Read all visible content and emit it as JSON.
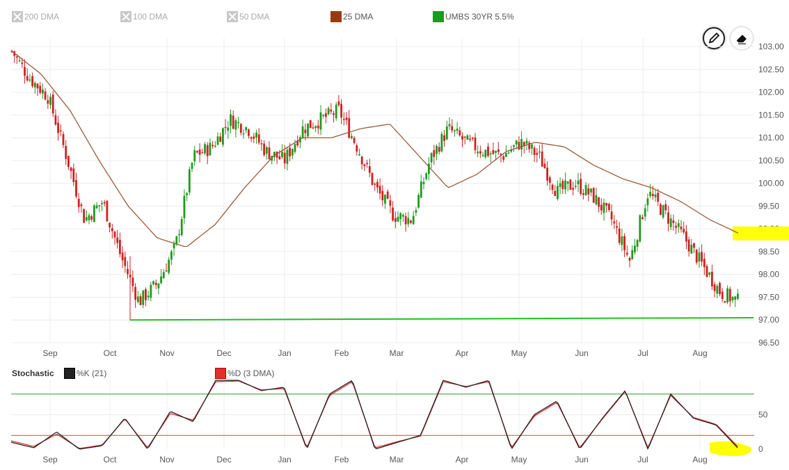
{
  "legend": {
    "items": [
      {
        "label": "200 DMA",
        "enabled": false
      },
      {
        "label": "100 DMA",
        "enabled": false
      },
      {
        "label": "50 DMA",
        "enabled": false
      },
      {
        "label": "25 DMA",
        "enabled": true,
        "color": "#9a3a10"
      },
      {
        "label": "UMBS 30YR 5.5%",
        "enabled": true,
        "color": "#1e9a1e"
      }
    ]
  },
  "tools": {
    "pencil": "pencil-icon",
    "eraser": "eraser-icon"
  },
  "stochastic": {
    "title": "Stochastic",
    "k_label": "%K (21)",
    "d_label": "%D (3 DMA)",
    "k_color": "#222222",
    "d_color": "#e03030"
  },
  "colors": {
    "up": "#1e9a1e",
    "down": "#d02020",
    "dma": "#9a5a3a",
    "support": "#22c022",
    "highlight": "#ffff00",
    "overbought": "#2e9a2e",
    "oversold": "#e04040"
  },
  "chart_data": [
    {
      "type": "candlestick",
      "title": "UMBS 30YR 5.5%",
      "x_tick_labels": [
        "Sep",
        "Oct",
        "Nov",
        "Dec",
        "Jan",
        "Feb",
        "Mar",
        "Apr",
        "May",
        "Jun",
        "Jul",
        "Aug"
      ],
      "y_tick_labels": [
        "103.00",
        "102.50",
        "102.00",
        "101.50",
        "101.00",
        "100.50",
        "100.00",
        "99.50",
        "99.00",
        "98.50",
        "98.00",
        "97.50",
        "97.00",
        "96.50"
      ],
      "ylim": [
        96.5,
        103.0
      ],
      "close_anchors": [
        {
          "x": "Aug",
          "y": 102.9
        },
        {
          "x": "Aug",
          "y": 102.3
        },
        {
          "x": "Sep",
          "y": 101.9
        },
        {
          "x": "Sep",
          "y": 100.6
        },
        {
          "x": "Sep",
          "y": 99.2
        },
        {
          "x": "Oct",
          "y": 99.6
        },
        {
          "x": "Oct",
          "y": 98.4
        },
        {
          "x": "Oct",
          "y": 97.4
        },
        {
          "x": "Oct",
          "y": 97.8
        },
        {
          "x": "Nov",
          "y": 98.6
        },
        {
          "x": "Nov",
          "y": 100.6
        },
        {
          "x": "Nov",
          "y": 100.8
        },
        {
          "x": "Dec",
          "y": 101.4
        },
        {
          "x": "Dec",
          "y": 101.2
        },
        {
          "x": "Dec",
          "y": 100.7
        },
        {
          "x": "Jan",
          "y": 100.5
        },
        {
          "x": "Jan",
          "y": 101.2
        },
        {
          "x": "Jan",
          "y": 101.4
        },
        {
          "x": "Feb",
          "y": 101.6
        },
        {
          "x": "Feb",
          "y": 100.8
        },
        {
          "x": "Feb",
          "y": 99.9
        },
        {
          "x": "Mar",
          "y": 99.3
        },
        {
          "x": "Mar",
          "y": 99.2
        },
        {
          "x": "Mar",
          "y": 100.5
        },
        {
          "x": "Apr",
          "y": 101.2
        },
        {
          "x": "Apr",
          "y": 100.9
        },
        {
          "x": "Apr",
          "y": 100.7
        },
        {
          "x": "May",
          "y": 100.6
        },
        {
          "x": "May",
          "y": 100.9
        },
        {
          "x": "May",
          "y": 100.6
        },
        {
          "x": "Jun",
          "y": 99.8
        },
        {
          "x": "Jun",
          "y": 100.0
        },
        {
          "x": "Jun",
          "y": 99.7
        },
        {
          "x": "Jul",
          "y": 99.2
        },
        {
          "x": "Jul",
          "y": 98.3
        },
        {
          "x": "Jul",
          "y": 99.8
        },
        {
          "x": "Jul",
          "y": 99.3
        },
        {
          "x": "Aug",
          "y": 98.8
        },
        {
          "x": "Aug",
          "y": 98.2
        },
        {
          "x": "Aug",
          "y": 97.6
        },
        {
          "x": "Aug",
          "y": 97.4
        }
      ],
      "dma25_anchors": [
        {
          "x": "Aug",
          "y": 102.9
        },
        {
          "x": "Sep",
          "y": 102.4
        },
        {
          "x": "Sep",
          "y": 101.6
        },
        {
          "x": "Oct",
          "y": 100.5
        },
        {
          "x": "Oct",
          "y": 99.5
        },
        {
          "x": "Nov",
          "y": 98.8
        },
        {
          "x": "Nov",
          "y": 98.6
        },
        {
          "x": "Nov",
          "y": 99.1
        },
        {
          "x": "Dec",
          "y": 99.9
        },
        {
          "x": "Dec",
          "y": 100.6
        },
        {
          "x": "Jan",
          "y": 101.0
        },
        {
          "x": "Jan",
          "y": 101.0
        },
        {
          "x": "Feb",
          "y": 101.2
        },
        {
          "x": "Feb",
          "y": 101.3
        },
        {
          "x": "Mar",
          "y": 100.6
        },
        {
          "x": "Mar",
          "y": 99.9
        },
        {
          "x": "Apr",
          "y": 100.2
        },
        {
          "x": "Apr",
          "y": 100.7
        },
        {
          "x": "May",
          "y": 100.9
        },
        {
          "x": "May",
          "y": 100.8
        },
        {
          "x": "Jun",
          "y": 100.4
        },
        {
          "x": "Jun",
          "y": 100.1
        },
        {
          "x": "Jul",
          "y": 99.9
        },
        {
          "x": "Jul",
          "y": 99.6
        },
        {
          "x": "Aug",
          "y": 99.2
        },
        {
          "x": "Aug",
          "y": 98.9
        }
      ],
      "support_line": {
        "from": {
          "x": "Oct",
          "y": 97.0
        },
        "to": {
          "x": "Aug",
          "y": 97.05
        }
      },
      "highlight_value": 98.9
    },
    {
      "type": "line",
      "title": "Stochastic",
      "x_tick_labels": [
        "Sep",
        "Oct",
        "Nov",
        "Dec",
        "Jan",
        "Feb",
        "Mar",
        "Apr",
        "May",
        "Jun",
        "Jul",
        "Aug"
      ],
      "y_tick_labels": [
        "50",
        "0"
      ],
      "ylim": [
        0,
        100
      ],
      "overbought": 80,
      "oversold": 20,
      "k_anchors": [
        {
          "x": "Aug",
          "y": 10
        },
        {
          "x": "Aug",
          "y": 2
        },
        {
          "x": "Sep",
          "y": 25
        },
        {
          "x": "Sep",
          "y": 0
        },
        {
          "x": "Sep",
          "y": 5
        },
        {
          "x": "Oct",
          "y": 45
        },
        {
          "x": "Oct",
          "y": 0
        },
        {
          "x": "Oct",
          "y": 55
        },
        {
          "x": "Nov",
          "y": 40
        },
        {
          "x": "Nov",
          "y": 100
        },
        {
          "x": "Dec",
          "y": 100
        },
        {
          "x": "Dec",
          "y": 85
        },
        {
          "x": "Dec",
          "y": 90
        },
        {
          "x": "Jan",
          "y": 0
        },
        {
          "x": "Jan",
          "y": 80
        },
        {
          "x": "Feb",
          "y": 100
        },
        {
          "x": "Feb",
          "y": 0
        },
        {
          "x": "Mar",
          "y": 10
        },
        {
          "x": "Mar",
          "y": 20
        },
        {
          "x": "Apr",
          "y": 100
        },
        {
          "x": "Apr",
          "y": 90
        },
        {
          "x": "Apr",
          "y": 100
        },
        {
          "x": "May",
          "y": 0
        },
        {
          "x": "May",
          "y": 50
        },
        {
          "x": "May",
          "y": 70
        },
        {
          "x": "Jun",
          "y": 0
        },
        {
          "x": "Jun",
          "y": 45
        },
        {
          "x": "Jun",
          "y": 85
        },
        {
          "x": "Jul",
          "y": 0
        },
        {
          "x": "Jul",
          "y": 80
        },
        {
          "x": "Aug",
          "y": 45
        },
        {
          "x": "Aug",
          "y": 35
        },
        {
          "x": "Aug",
          "y": 0
        }
      ],
      "d_anchors": [
        {
          "x": "Aug",
          "y": 12
        },
        {
          "x": "Aug",
          "y": 4
        },
        {
          "x": "Sep",
          "y": 22
        },
        {
          "x": "Sep",
          "y": 1
        },
        {
          "x": "Sep",
          "y": 6
        },
        {
          "x": "Oct",
          "y": 44
        },
        {
          "x": "Oct",
          "y": 2
        },
        {
          "x": "Oct",
          "y": 52
        },
        {
          "x": "Nov",
          "y": 42
        },
        {
          "x": "Nov",
          "y": 98
        },
        {
          "x": "Dec",
          "y": 99
        },
        {
          "x": "Dec",
          "y": 86
        },
        {
          "x": "Dec",
          "y": 88
        },
        {
          "x": "Jan",
          "y": 2
        },
        {
          "x": "Jan",
          "y": 78
        },
        {
          "x": "Feb",
          "y": 98
        },
        {
          "x": "Feb",
          "y": 2
        },
        {
          "x": "Mar",
          "y": 11
        },
        {
          "x": "Mar",
          "y": 19
        },
        {
          "x": "Apr",
          "y": 98
        },
        {
          "x": "Apr",
          "y": 91
        },
        {
          "x": "Apr",
          "y": 98
        },
        {
          "x": "May",
          "y": 2
        },
        {
          "x": "May",
          "y": 48
        },
        {
          "x": "May",
          "y": 68
        },
        {
          "x": "Jun",
          "y": 2
        },
        {
          "x": "Jun",
          "y": 44
        },
        {
          "x": "Jun",
          "y": 84
        },
        {
          "x": "Jul",
          "y": 2
        },
        {
          "x": "Jul",
          "y": 78
        },
        {
          "x": "Aug",
          "y": 46
        },
        {
          "x": "Aug",
          "y": 36
        },
        {
          "x": "Aug",
          "y": 2
        }
      ]
    }
  ]
}
